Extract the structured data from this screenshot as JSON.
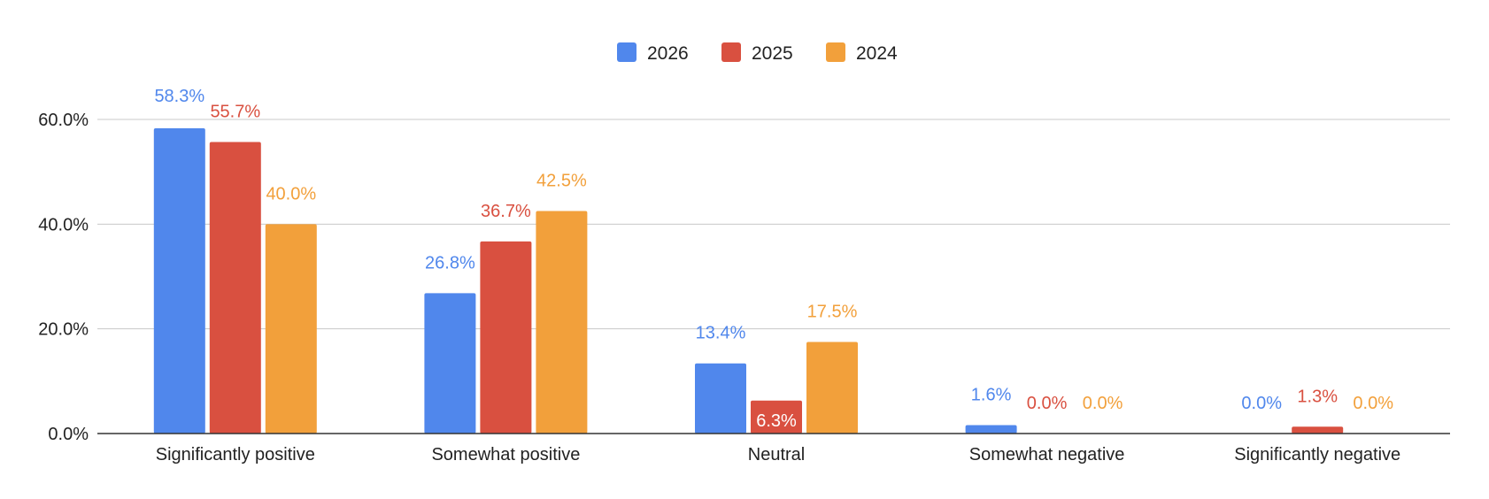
{
  "chart_data": {
    "type": "bar",
    "categories": [
      "Significantly positive",
      "Somewhat positive",
      "Neutral",
      "Somewhat negative",
      "Significantly negative"
    ],
    "series": [
      {
        "name": "2026",
        "color": "#5087ec",
        "values": [
          58.3,
          26.8,
          13.4,
          1.6,
          0.0
        ],
        "labels": [
          "58.3%",
          "26.8%",
          "13.4%",
          "1.6%",
          "0.0%"
        ]
      },
      {
        "name": "2025",
        "color": "#d95040",
        "values": [
          55.7,
          36.7,
          6.3,
          0.0,
          1.3
        ],
        "labels": [
          "55.7%",
          "36.7%",
          "6.3%",
          "0.0%",
          "1.3%"
        ]
      },
      {
        "name": "2024",
        "color": "#f2a03b",
        "values": [
          40.0,
          42.5,
          17.5,
          0.0,
          0.0
        ],
        "labels": [
          "40.0%",
          "42.5%",
          "17.5%",
          "0.0%",
          "0.0%"
        ]
      }
    ],
    "y_ticks": [
      0,
      20,
      40,
      60
    ],
    "y_tick_labels": [
      "0.0%",
      "20.0%",
      "40.0%",
      "60.0%"
    ],
    "ylim": [
      0,
      60
    ],
    "grid": true,
    "legend_position": "top",
    "title": "",
    "xlabel": "",
    "ylabel": ""
  }
}
